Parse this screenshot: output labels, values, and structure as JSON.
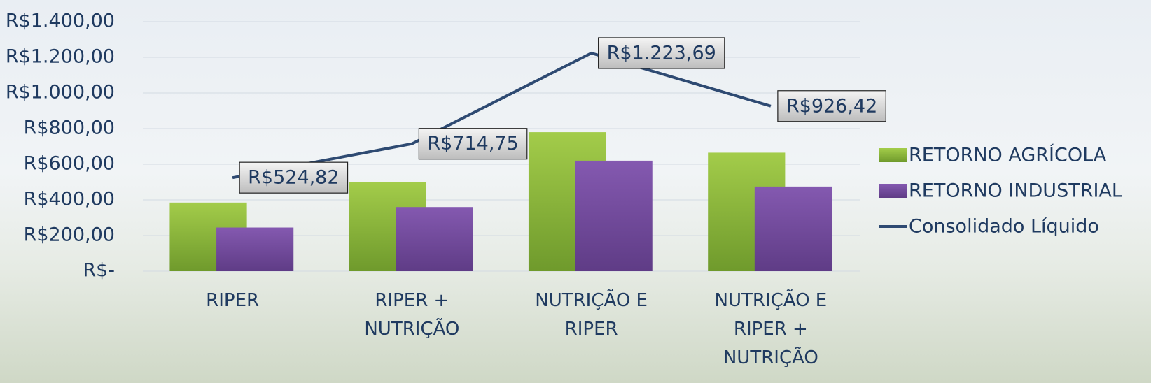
{
  "chart_data": {
    "type": "bar_line",
    "categories": [
      "RIPER",
      "RIPER + NUTRIÇÃO",
      "NUTRIÇÃO E RIPER",
      "NUTRIÇÃO E RIPER + NUTRIÇÃO"
    ],
    "series": [
      {
        "name": "RETORNO AGRÍCOLA",
        "type": "bar",
        "color": "#8dbb3c",
        "values": [
          385,
          500,
          780,
          665
        ]
      },
      {
        "name": "RETORNO INDUSTRIAL",
        "type": "bar",
        "color": "#7a50a3",
        "values": [
          245,
          360,
          620,
          475
        ]
      },
      {
        "name": "Consolidado Líquido",
        "type": "line",
        "color": "#2e4a72",
        "values": [
          524.82,
          714.75,
          1223.69,
          926.42
        ],
        "value_labels": [
          "R$524,82",
          "R$714,75",
          "R$1.223,69",
          "R$926,42"
        ]
      }
    ],
    "ylim": [
      0,
      1400
    ],
    "yticks": [
      {
        "value": 0,
        "label": "R$-"
      },
      {
        "value": 200,
        "label": "R$200,00"
      },
      {
        "value": 400,
        "label": "R$400,00"
      },
      {
        "value": 600,
        "label": "R$600,00"
      },
      {
        "value": 800,
        "label": "R$800,00"
      },
      {
        "value": 1000,
        "label": "R$1.000,00"
      },
      {
        "value": 1200,
        "label": "R$1.200,00"
      },
      {
        "value": 1400,
        "label": "R$1.400,00"
      }
    ],
    "grid": true,
    "legend": "right"
  }
}
